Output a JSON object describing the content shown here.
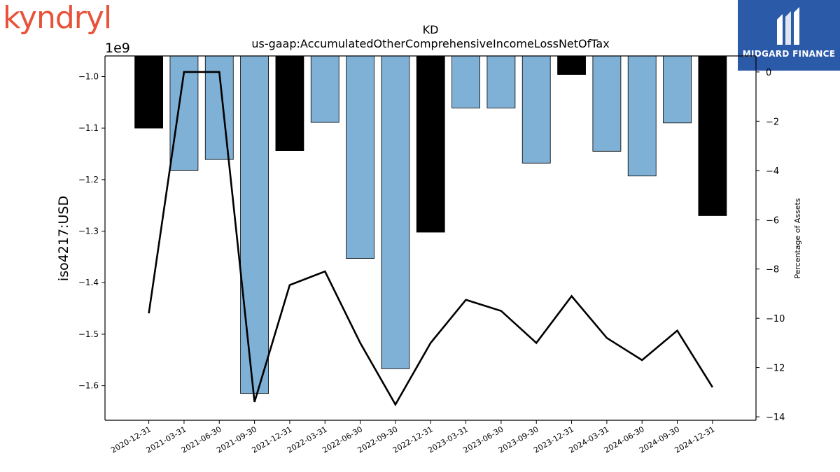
{
  "logos": {
    "left_text": "kyndryl",
    "right_text": "MIDGARD FINANCE"
  },
  "chart_data": {
    "type": "bar",
    "title": "KD",
    "subtitle": "us-gaap:AccumulatedOtherComprehensiveIncomeLossNetOfTax",
    "ylabel": "iso4217:USD",
    "y_offset_label": "1e9",
    "y2label": "Percentage of Assets",
    "categories": [
      "2020-12-31",
      "2021-03-31",
      "2021-06-30",
      "2021-09-30",
      "2021-12-31",
      "2022-03-31",
      "2022-06-30",
      "2022-09-30",
      "2022-12-31",
      "2023-03-31",
      "2023-06-30",
      "2023-09-30",
      "2023-12-31",
      "2024-03-31",
      "2024-06-30",
      "2024-09-30",
      "2024-12-31"
    ],
    "series": [
      {
        "values": [
          -1.1,
          -1.182,
          -1.161,
          -1.615,
          -1.144,
          -1.089,
          -1.353,
          -1.567,
          -1.302,
          -1.061,
          -1.061,
          -1.168,
          -0.996,
          -1.145,
          -1.193,
          -1.09,
          -1.27
        ],
        "bar_colors": [
          "#000000",
          "#7fb0d5",
          "#7fb0d5",
          "#7fb0d5",
          "#000000",
          "#7fb0d5",
          "#7fb0d5",
          "#7fb0d5",
          "#000000",
          "#7fb0d5",
          "#7fb0d5",
          "#7fb0d5",
          "#000000",
          "#7fb0d5",
          "#7fb0d5",
          "#7fb0d5",
          "#000000"
        ]
      },
      {
        "axis": "right",
        "type": "line",
        "color": "#000000",
        "values": [
          -9.8,
          0,
          0,
          -13.4,
          -8.65,
          -8.1,
          -11.0,
          -13.5,
          -11.0,
          -9.25,
          -9.7,
          -11.0,
          -9.1,
          -10.8,
          -11.7,
          -10.5,
          -12.8
        ]
      }
    ],
    "ylim": [
      -1.667,
      -0.96
    ],
    "y_ticks": [
      -1.0,
      -1.1,
      -1.2,
      -1.3,
      -1.4,
      -1.5,
      -1.6
    ],
    "y2lim": [
      -14.14,
      0.65
    ],
    "y2_ticks": [
      0,
      -2,
      -4,
      -6,
      -8,
      -10,
      -12,
      -14
    ],
    "grid": false
  }
}
